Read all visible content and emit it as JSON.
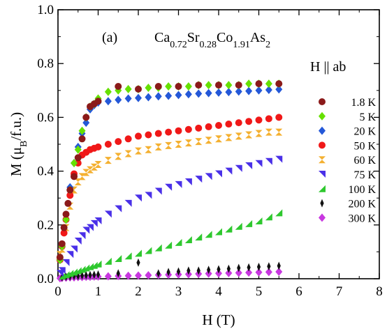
{
  "chart_data": {
    "type": "scatter",
    "panel_label": "(a)",
    "compound": {
      "parts": [
        {
          "t": "Ca",
          "s": "0.72"
        },
        {
          "t": "Sr",
          "s": "0.28"
        },
        {
          "t": "Co",
          "s": "1.91"
        },
        {
          "t": "As",
          "s": "2"
        }
      ]
    },
    "field_direction": "H || ab",
    "xlabel": "H (T)",
    "ylabel": {
      "main": "M (μ",
      "sub": "B",
      "tail": "/f.u.)"
    },
    "xlim": [
      0,
      8
    ],
    "ylim": [
      0,
      1.0
    ],
    "xticks": [
      "0",
      "1",
      "2",
      "3",
      "4",
      "5",
      "6",
      "7",
      "8"
    ],
    "yticks": [
      "0.0",
      "0.2",
      "0.4",
      "0.6",
      "0.8",
      "1.0"
    ],
    "legend_position": "right",
    "series": [
      {
        "name": "1.8 K",
        "marker": "circle",
        "color": "#8b1a1a",
        "x": [
          0.05,
          0.1,
          0.15,
          0.2,
          0.25,
          0.3,
          0.4,
          0.5,
          0.6,
          0.7,
          0.8,
          0.9,
          1.0,
          1.5,
          2.0,
          2.5,
          3.0,
          3.5,
          4.0,
          4.5,
          5.0,
          5.5
        ],
        "y": [
          0.08,
          0.13,
          0.19,
          0.24,
          0.28,
          0.33,
          0.38,
          0.45,
          0.52,
          0.6,
          0.64,
          0.65,
          0.66,
          0.715,
          0.705,
          0.715,
          0.715,
          0.72,
          0.72,
          0.72,
          0.725,
          0.725
        ]
      },
      {
        "name": "5 K",
        "marker": "diamond",
        "color": "#66e000",
        "x": [
          0.05,
          0.1,
          0.2,
          0.3,
          0.4,
          0.5,
          0.6,
          0.7,
          0.8,
          0.9,
          1.0,
          1.25,
          1.5,
          1.75,
          2.0,
          2.25,
          2.5,
          2.75,
          3.0,
          3.25,
          3.5,
          3.75,
          4.0,
          4.25,
          4.5,
          4.75,
          5.0,
          5.25,
          5.5
        ],
        "y": [
          0.07,
          0.12,
          0.22,
          0.33,
          0.43,
          0.48,
          0.55,
          0.6,
          0.64,
          0.65,
          0.67,
          0.695,
          0.7,
          0.705,
          0.705,
          0.71,
          0.71,
          0.715,
          0.715,
          0.715,
          0.72,
          0.72,
          0.72,
          0.72,
          0.72,
          0.725,
          0.725,
          0.725,
          0.725
        ]
      },
      {
        "name": "20 K",
        "marker": "diamond",
        "color": "#2458d8",
        "x": [
          0.05,
          0.1,
          0.2,
          0.3,
          0.4,
          0.5,
          0.6,
          0.7,
          0.8,
          0.9,
          1.0,
          1.25,
          1.5,
          1.75,
          2.0,
          2.25,
          2.5,
          2.75,
          3.0,
          3.25,
          3.5,
          3.75,
          4.0,
          4.25,
          4.5,
          4.75,
          5.0,
          5.25,
          5.5
        ],
        "y": [
          0.07,
          0.12,
          0.22,
          0.34,
          0.43,
          0.49,
          0.54,
          0.58,
          0.63,
          0.645,
          0.655,
          0.66,
          0.665,
          0.67,
          0.672,
          0.675,
          0.678,
          0.68,
          0.683,
          0.686,
          0.688,
          0.69,
          0.692,
          0.694,
          0.696,
          0.698,
          0.7,
          0.702,
          0.704
        ]
      },
      {
        "name": "50 K",
        "marker": "circle",
        "color": "#f01818",
        "x": [
          0.05,
          0.1,
          0.15,
          0.2,
          0.3,
          0.4,
          0.5,
          0.6,
          0.7,
          0.8,
          0.9,
          1.0,
          1.25,
          1.5,
          1.75,
          2.0,
          2.25,
          2.5,
          2.75,
          3.0,
          3.25,
          3.5,
          3.75,
          4.0,
          4.25,
          4.5,
          4.75,
          5.0,
          5.25,
          5.5
        ],
        "y": [
          0.07,
          0.12,
          0.17,
          0.22,
          0.31,
          0.39,
          0.43,
          0.46,
          0.47,
          0.48,
          0.485,
          0.49,
          0.5,
          0.51,
          0.52,
          0.53,
          0.535,
          0.54,
          0.545,
          0.55,
          0.555,
          0.56,
          0.565,
          0.57,
          0.575,
          0.58,
          0.585,
          0.59,
          0.595,
          0.6
        ]
      },
      {
        "name": "60 K",
        "marker": "hourglass",
        "color": "#f4b030",
        "x": [
          0.05,
          0.1,
          0.2,
          0.3,
          0.4,
          0.5,
          0.6,
          0.7,
          0.8,
          0.9,
          1.0,
          1.25,
          1.5,
          1.75,
          2.0,
          2.25,
          2.5,
          2.75,
          3.0,
          3.25,
          3.5,
          3.75,
          4.0,
          4.25,
          4.5,
          4.75,
          5.0,
          5.25,
          5.5
        ],
        "y": [
          0.09,
          0.11,
          0.19,
          0.27,
          0.33,
          0.36,
          0.38,
          0.395,
          0.405,
          0.415,
          0.425,
          0.44,
          0.455,
          0.465,
          0.475,
          0.48,
          0.49,
          0.495,
          0.5,
          0.505,
          0.51,
          0.515,
          0.52,
          0.525,
          0.53,
          0.535,
          0.54,
          0.545,
          0.545
        ]
      },
      {
        "name": "75 K",
        "marker": "triangle-se",
        "color": "#4a30e8",
        "x": [
          0.05,
          0.1,
          0.2,
          0.3,
          0.4,
          0.5,
          0.6,
          0.7,
          0.8,
          0.9,
          1.0,
          1.25,
          1.5,
          1.75,
          2.0,
          2.25,
          2.5,
          2.75,
          3.0,
          3.25,
          3.5,
          3.75,
          4.0,
          4.25,
          4.5,
          4.75,
          5.0,
          5.25,
          5.5
        ],
        "y": [
          0.02,
          0.03,
          0.06,
          0.09,
          0.11,
          0.14,
          0.16,
          0.18,
          0.19,
          0.205,
          0.215,
          0.24,
          0.26,
          0.28,
          0.3,
          0.31,
          0.325,
          0.34,
          0.35,
          0.36,
          0.37,
          0.38,
          0.39,
          0.4,
          0.41,
          0.42,
          0.428,
          0.436,
          0.444
        ]
      },
      {
        "name": "100 K",
        "marker": "triangle-ne",
        "color": "#2ec82e",
        "x": [
          0.1,
          0.2,
          0.3,
          0.4,
          0.5,
          0.6,
          0.7,
          0.8,
          0.9,
          1.0,
          1.25,
          1.5,
          1.75,
          2.0,
          2.25,
          2.5,
          2.75,
          3.0,
          3.25,
          3.5,
          3.75,
          4.0,
          4.25,
          4.5,
          4.75,
          5.0,
          5.25,
          5.5
        ],
        "y": [
          0.01,
          0.015,
          0.02,
          0.025,
          0.03,
          0.035,
          0.04,
          0.045,
          0.05,
          0.055,
          0.065,
          0.075,
          0.085,
          0.095,
          0.105,
          0.115,
          0.125,
          0.135,
          0.145,
          0.155,
          0.165,
          0.175,
          0.185,
          0.195,
          0.205,
          0.215,
          0.23,
          0.245
        ]
      },
      {
        "name": "200 K",
        "marker": "diamond-thin",
        "color": "#111111",
        "x": [
          0.1,
          0.2,
          0.3,
          0.4,
          0.5,
          0.6,
          0.7,
          0.8,
          0.9,
          1.0,
          1.5,
          2.0,
          2.5,
          2.75,
          3.0,
          3.25,
          3.5,
          3.75,
          4.0,
          4.25,
          4.5,
          4.75,
          5.0,
          5.25,
          5.5
        ],
        "y": [
          0.005,
          0.007,
          0.008,
          0.01,
          0.01,
          0.012,
          0.013,
          0.014,
          0.015,
          0.016,
          0.02,
          0.06,
          0.02,
          0.025,
          0.027,
          0.03,
          0.03,
          0.033,
          0.035,
          0.037,
          0.04,
          0.042,
          0.044,
          0.046,
          0.048
        ]
      },
      {
        "name": "300 K",
        "marker": "diamond",
        "color": "#c838e0",
        "x": [
          0.05,
          0.1,
          0.2,
          0.3,
          0.4,
          0.5,
          0.6,
          0.7,
          0.8,
          0.9,
          1.0,
          1.25,
          1.5,
          1.75,
          2.0,
          2.25,
          2.5,
          2.75,
          3.0,
          3.25,
          3.5,
          3.75,
          4.0,
          4.25,
          4.5,
          4.75,
          5.0,
          5.25,
          5.5
        ],
        "y": [
          0.002,
          0.003,
          0.004,
          0.005,
          0.005,
          0.006,
          0.006,
          0.007,
          0.007,
          0.008,
          0.008,
          0.009,
          0.01,
          0.011,
          0.012,
          0.013,
          0.014,
          0.015,
          0.016,
          0.017,
          0.018,
          0.019,
          0.02,
          0.021,
          0.022,
          0.023,
          0.024,
          0.025,
          0.026
        ]
      }
    ]
  }
}
